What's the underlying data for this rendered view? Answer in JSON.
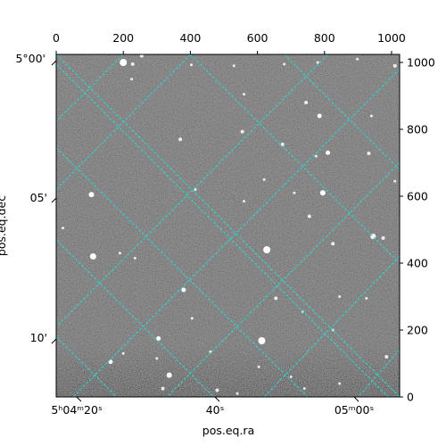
{
  "chart_data": {
    "type": "image",
    "xlabel": "pos.eq.ra",
    "ylabel": "pos.eq.dec",
    "pixel_axes": {
      "top_ticks": [
        "0",
        "200",
        "400",
        "600",
        "800",
        "1000"
      ],
      "top_values": [
        0,
        200,
        400,
        600,
        800,
        1000
      ],
      "right_ticks": [
        "0",
        "200",
        "400",
        "600",
        "800",
        "1000"
      ],
      "right_values": [
        0,
        200,
        400,
        600,
        800,
        1000
      ],
      "xlim": [
        0,
        1024
      ],
      "ylim": [
        0,
        1024
      ]
    },
    "world_axes": {
      "ra_ticks": [
        "5ʰ04ᵐ20ˢ",
        "40ˢ",
        "05ᵐ00ˢ"
      ],
      "dec_ticks": [
        "5°00'",
        "05'",
        "10'"
      ]
    },
    "grid": true,
    "grid_color": "#2fd4d0",
    "colormap": "gray",
    "stars": [
      {
        "x": 200,
        "y": 1000,
        "r": 4
      },
      {
        "x": 228,
        "y": 995,
        "r": 2
      },
      {
        "x": 255,
        "y": 1020,
        "r": 2
      },
      {
        "x": 403,
        "y": 993,
        "r": 1.5
      },
      {
        "x": 530,
        "y": 990,
        "r": 1.5
      },
      {
        "x": 680,
        "y": 995,
        "r": 1.5
      },
      {
        "x": 780,
        "y": 1000,
        "r": 1.5
      },
      {
        "x": 898,
        "y": 1010,
        "r": 1.5
      },
      {
        "x": 1010,
        "y": 990,
        "r": 2
      },
      {
        "x": 225,
        "y": 950,
        "r": 1.5
      },
      {
        "x": 560,
        "y": 905,
        "r": 1.5
      },
      {
        "x": 745,
        "y": 880,
        "r": 2
      },
      {
        "x": 785,
        "y": 840,
        "r": 2.5
      },
      {
        "x": 940,
        "y": 840,
        "r": 1.5
      },
      {
        "x": 555,
        "y": 793,
        "r": 2
      },
      {
        "x": 370,
        "y": 770,
        "r": 2
      },
      {
        "x": 675,
        "y": 755,
        "r": 2
      },
      {
        "x": 810,
        "y": 730,
        "r": 2.5
      },
      {
        "x": 775,
        "y": 720,
        "r": 1.5
      },
      {
        "x": 932,
        "y": 728,
        "r": 2
      },
      {
        "x": 620,
        "y": 650,
        "r": 1.5
      },
      {
        "x": 1010,
        "y": 645,
        "r": 1.5
      },
      {
        "x": 105,
        "y": 605,
        "r": 3
      },
      {
        "x": 415,
        "y": 620,
        "r": 1.5
      },
      {
        "x": 560,
        "y": 585,
        "r": 1.5
      },
      {
        "x": 710,
        "y": 610,
        "r": 1.5
      },
      {
        "x": 795,
        "y": 610,
        "r": 3
      },
      {
        "x": 755,
        "y": 540,
        "r": 2
      },
      {
        "x": 20,
        "y": 505,
        "r": 1.5
      },
      {
        "x": 945,
        "y": 480,
        "r": 3
      },
      {
        "x": 975,
        "y": 475,
        "r": 2
      },
      {
        "x": 825,
        "y": 458,
        "r": 2
      },
      {
        "x": 628,
        "y": 440,
        "r": 4
      },
      {
        "x": 110,
        "y": 420,
        "r": 3.5
      },
      {
        "x": 190,
        "y": 430,
        "r": 1.5
      },
      {
        "x": 235,
        "y": 415,
        "r": 1.5
      },
      {
        "x": 380,
        "y": 320,
        "r": 2.5
      },
      {
        "x": 655,
        "y": 295,
        "r": 2
      },
      {
        "x": 845,
        "y": 300,
        "r": 1.5
      },
      {
        "x": 925,
        "y": 295,
        "r": 1.5
      },
      {
        "x": 735,
        "y": 255,
        "r": 1.5
      },
      {
        "x": 405,
        "y": 235,
        "r": 1.5
      },
      {
        "x": 305,
        "y": 175,
        "r": 2.5
      },
      {
        "x": 613,
        "y": 168,
        "r": 4
      },
      {
        "x": 825,
        "y": 200,
        "r": 1.5
      },
      {
        "x": 460,
        "y": 135,
        "r": 1.5
      },
      {
        "x": 162,
        "y": 105,
        "r": 2.5
      },
      {
        "x": 200,
        "y": 130,
        "r": 1.5
      },
      {
        "x": 300,
        "y": 115,
        "r": 1.5
      },
      {
        "x": 604,
        "y": 90,
        "r": 1.5
      },
      {
        "x": 700,
        "y": 60,
        "r": 1.5
      },
      {
        "x": 985,
        "y": 120,
        "r": 2
      },
      {
        "x": 337,
        "y": 65,
        "r": 3
      },
      {
        "x": 318,
        "y": 25,
        "r": 2
      },
      {
        "x": 480,
        "y": 20,
        "r": 2
      },
      {
        "x": 740,
        "y": 25,
        "r": 1.5
      },
      {
        "x": 845,
        "y": 40,
        "r": 1.5
      },
      {
        "x": 540,
        "y": 10,
        "r": 1.5
      }
    ],
    "grid_lines": [
      {
        "from": [
          0,
          1024
        ],
        "to": [
          1024,
          0
        ]
      },
      {
        "from": [
          0,
          745
        ],
        "to": [
          750,
          0
        ]
      },
      {
        "from": [
          0,
          470
        ],
        "to": [
          470,
          0
        ]
      },
      {
        "from": [
          400,
          1024
        ],
        "to": [
          1024,
          400
        ]
      },
      {
        "from": [
          0,
          180
        ],
        "to": [
          180,
          0
        ]
      },
      {
        "from": [
          680,
          1024
        ],
        "to": [
          1024,
          680
        ]
      },
      {
        "from": [
          0,
          1024
        ],
        "to": [
          0,
          1024
        ]
      },
      {
        "from": [
          200,
          1024
        ],
        "to": [
          0,
          824
        ]
      },
      {
        "from": [
          0,
          995
        ],
        "to": [
          990,
          0
        ]
      },
      {
        "from": [
          400,
          1024
        ],
        "to": [
          0,
          620
        ]
      },
      {
        "from": [
          810,
          1024
        ],
        "to": [
          0,
          210
        ]
      },
      {
        "from": [
          1024,
          980
        ],
        "to": [
          50,
          0
        ]
      },
      {
        "from": [
          1024,
          700
        ],
        "to": [
          330,
          0
        ]
      },
      {
        "from": [
          1024,
          420
        ],
        "to": [
          620,
          0
        ]
      },
      {
        "from": [
          1024,
          140
        ],
        "to": [
          900,
          0
        ]
      }
    ]
  }
}
